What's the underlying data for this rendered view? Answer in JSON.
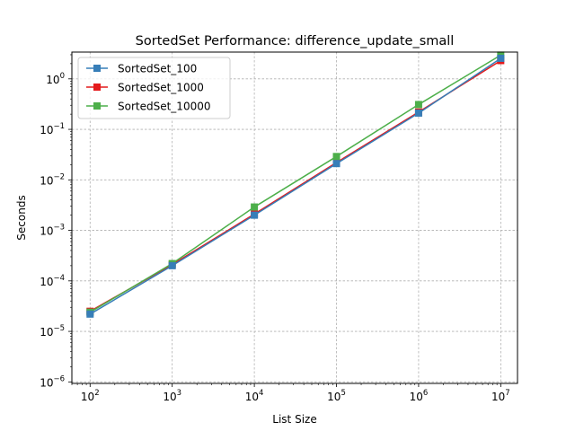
{
  "chart_data": {
    "type": "line",
    "title": "SortedSet Performance: difference_update_small",
    "xlabel": "List Size",
    "ylabel": "Seconds",
    "xscale": "log",
    "yscale": "log",
    "x": [
      100,
      1000,
      10000,
      100000,
      1000000,
      10000000
    ],
    "x_tick_labels": [
      {
        "base": "10",
        "exp": "2"
      },
      {
        "base": "10",
        "exp": "3"
      },
      {
        "base": "10",
        "exp": "4"
      },
      {
        "base": "10",
        "exp": "5"
      },
      {
        "base": "10",
        "exp": "6"
      },
      {
        "base": "10",
        "exp": "7"
      }
    ],
    "y_tick_labels": [
      {
        "base": "10",
        "exp": "−6"
      },
      {
        "base": "10",
        "exp": "−5"
      },
      {
        "base": "10",
        "exp": "−4"
      },
      {
        "base": "10",
        "exp": "−3"
      },
      {
        "base": "10",
        "exp": "−2"
      },
      {
        "base": "10",
        "exp": "−1"
      },
      {
        "base": "10",
        "exp": "0"
      }
    ],
    "series": [
      {
        "name": "SortedSet_1000",
        "color": "#e41a1c",
        "values": [
          2.5e-05,
          0.00021,
          0.0021,
          0.022,
          0.22,
          2.3
        ]
      },
      {
        "name": "SortedSet_10000",
        "color": "#4daf4a",
        "values": [
          2.4e-05,
          0.00022,
          0.0029,
          0.029,
          0.31,
          2.95
        ]
      },
      {
        "name": "SortedSet_100",
        "color": "#377eb8",
        "values": [
          2.2e-05,
          0.0002,
          0.002,
          0.021,
          0.21,
          2.55
        ]
      }
    ],
    "legend": {
      "position": "top-left",
      "entries": [
        "SortedSet_100",
        "SortedSet_1000",
        "SortedSet_10000"
      ]
    },
    "grid": true,
    "marker": "square"
  }
}
